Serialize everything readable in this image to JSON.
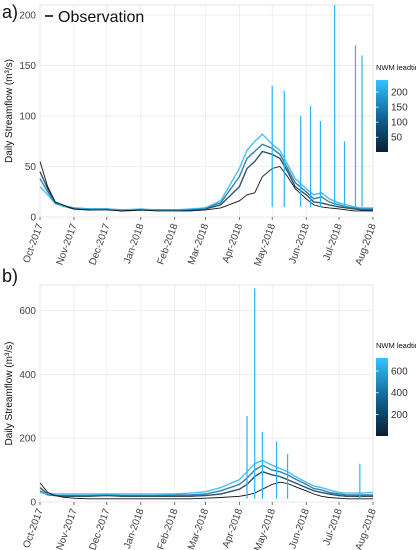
{
  "chart_data": [
    {
      "type": "line",
      "panel_label": "a)",
      "ylabel": "Daily Streamflow  (m³/s)",
      "ylim": [
        0,
        210
      ],
      "y_ticks": [
        0,
        50,
        100,
        150,
        200
      ],
      "x_ticks": [
        "Oct-2017",
        "Nov-2017",
        "Dec-2017",
        "Jan-2018",
        "Feb-2018",
        "Mar-2018",
        "Apr-2018",
        "May-2018",
        "Jun-2018",
        "Jul-2018",
        "Aug-2018"
      ],
      "x": [
        "2017-10-01",
        "2017-10-08",
        "2017-10-15",
        "2017-10-22",
        "2017-11-01",
        "2017-11-15",
        "2017-12-01",
        "2017-12-15",
        "2018-01-01",
        "2018-01-15",
        "2018-02-01",
        "2018-02-15",
        "2018-03-01",
        "2018-03-15",
        "2018-04-01",
        "2018-04-08",
        "2018-04-15",
        "2018-04-22",
        "2018-05-01",
        "2018-05-08",
        "2018-05-15",
        "2018-05-22",
        "2018-06-01",
        "2018-06-08",
        "2018-06-15",
        "2018-06-22",
        "2018-07-01",
        "2018-07-08",
        "2018-07-15",
        "2018-07-22",
        "2018-08-01"
      ],
      "legend": {
        "entry": "Observation",
        "colorbar_title": "NWM leadtime",
        "colorbar_ticks": [
          50,
          100,
          150,
          200
        ],
        "colorbar_range": [
          1,
          240
        ]
      },
      "grid": true,
      "series": [
        {
          "name": "Observation",
          "color": "#111111",
          "values": [
            55,
            30,
            15,
            12,
            8,
            7,
            7,
            6,
            7,
            6,
            6,
            6,
            7,
            9,
            16,
            22,
            24,
            40,
            48,
            50,
            40,
            28,
            18,
            12,
            10,
            9,
            8,
            7,
            6,
            6,
            6
          ]
        },
        {
          "color": "#0d3550",
          "values": [
            45,
            28,
            14,
            11,
            8,
            7,
            8,
            6,
            7,
            7,
            7,
            7,
            8,
            12,
            30,
            48,
            55,
            65,
            62,
            58,
            45,
            30,
            22,
            15,
            14,
            12,
            10,
            9,
            8,
            7,
            7
          ]
        },
        {
          "color": "#0f6d9d",
          "values": [
            38,
            25,
            14,
            11,
            9,
            8,
            8,
            7,
            7,
            7,
            7,
            7,
            9,
            14,
            40,
            58,
            65,
            72,
            68,
            62,
            48,
            34,
            25,
            18,
            20,
            15,
            12,
            10,
            9,
            8,
            8
          ]
        },
        {
          "color": "#29b4f0",
          "values": [
            30,
            22,
            13,
            11,
            9,
            8,
            8,
            7,
            8,
            7,
            7,
            8,
            9,
            16,
            48,
            66,
            75,
            82,
            72,
            66,
            52,
            38,
            28,
            22,
            24,
            18,
            14,
            12,
            10,
            9,
            9
          ]
        }
      ],
      "spikes": [
        {
          "x": "2018-05-01",
          "y": 130
        },
        {
          "x": "2018-05-12",
          "y": 125
        },
        {
          "x": "2018-05-27",
          "y": 100
        },
        {
          "x": "2018-06-05",
          "y": 110
        },
        {
          "x": "2018-06-14",
          "y": 95
        },
        {
          "x": "2018-06-27",
          "y": 210
        },
        {
          "x": "2018-07-06",
          "y": 75
        },
        {
          "x": "2018-07-16",
          "y": 170
        },
        {
          "x": "2018-07-22",
          "y": 160
        }
      ]
    },
    {
      "type": "line",
      "panel_label": "b)",
      "ylabel": "Daily Streamflow  (m³/s)",
      "ylim": [
        0,
        680
      ],
      "y_ticks": [
        0,
        200,
        400,
        600
      ],
      "x_ticks": [
        "Oct-2017",
        "Nov-2017",
        "Dec-2017",
        "Jan-2018",
        "Feb-2018",
        "Mar-2018",
        "Apr-2018",
        "May-2018",
        "Jun-2018",
        "Jul-2018",
        "Aug-2018"
      ],
      "x": [
        "2017-10-01",
        "2017-10-08",
        "2017-10-15",
        "2017-10-22",
        "2017-11-01",
        "2017-11-15",
        "2017-12-01",
        "2017-12-15",
        "2018-01-01",
        "2018-01-15",
        "2018-02-01",
        "2018-02-15",
        "2018-03-01",
        "2018-03-15",
        "2018-04-01",
        "2018-04-08",
        "2018-04-15",
        "2018-04-22",
        "2018-05-01",
        "2018-05-08",
        "2018-05-15",
        "2018-05-22",
        "2018-06-01",
        "2018-06-08",
        "2018-06-15",
        "2018-06-22",
        "2018-07-01",
        "2018-07-08",
        "2018-07-15",
        "2018-07-22",
        "2018-08-01"
      ],
      "legend": {
        "colorbar_title": "NWM leadtime",
        "colorbar_ticks": [
          200,
          400,
          600
        ],
        "colorbar_range": [
          1,
          720
        ]
      },
      "grid": true,
      "series": [
        {
          "name": "Observation",
          "color": "#111111",
          "values": [
            60,
            30,
            20,
            15,
            12,
            10,
            10,
            10,
            10,
            10,
            10,
            10,
            12,
            14,
            18,
            22,
            28,
            40,
            55,
            62,
            58,
            48,
            35,
            25,
            18,
            14,
            12,
            10,
            10,
            10,
            10
          ]
        },
        {
          "color": "#0d3550",
          "values": [
            45,
            25,
            20,
            18,
            18,
            18,
            20,
            18,
            18,
            18,
            18,
            18,
            20,
            25,
            40,
            55,
            80,
            95,
            85,
            80,
            70,
            60,
            45,
            35,
            30,
            25,
            20,
            18,
            18,
            18,
            18
          ]
        },
        {
          "color": "#0f6d9d",
          "values": [
            35,
            22,
            20,
            20,
            20,
            20,
            22,
            20,
            20,
            20,
            22,
            22,
            25,
            35,
            55,
            75,
            100,
            115,
            100,
            95,
            85,
            72,
            55,
            42,
            38,
            30,
            25,
            22,
            22,
            22,
            22
          ]
        },
        {
          "color": "#29b4f0",
          "values": [
            30,
            25,
            25,
            25,
            25,
            25,
            25,
            25,
            25,
            25,
            25,
            28,
            32,
            45,
            70,
            95,
            120,
            130,
            115,
            105,
            95,
            80,
            62,
            50,
            45,
            38,
            30,
            28,
            28,
            28,
            30
          ]
        }
      ],
      "spikes": [
        {
          "x": "2018-04-08",
          "y": 270
        },
        {
          "x": "2018-04-15",
          "y": 670
        },
        {
          "x": "2018-04-22",
          "y": 220
        },
        {
          "x": "2018-05-05",
          "y": 190
        },
        {
          "x": "2018-05-15",
          "y": 150
        },
        {
          "x": "2018-07-20",
          "y": 120
        }
      ]
    }
  ]
}
